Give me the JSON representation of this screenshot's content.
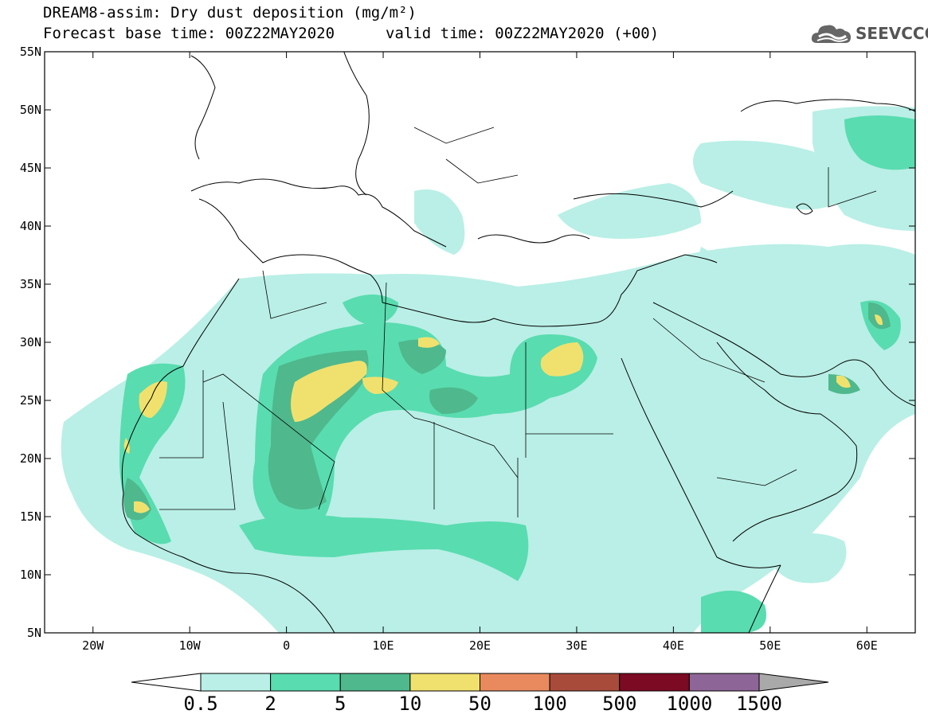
{
  "title": {
    "line1": "DREAM8-assim: Dry dust deposition (mg/m²)",
    "base_time": "Forecast base time: 00Z22MAY2020",
    "valid_time": "valid time: 00Z22MAY2020 (+00)"
  },
  "logo": {
    "text": "SEEVCCC",
    "icon": "cloud-icon"
  },
  "map": {
    "lat_labels": [
      "55N",
      "50N",
      "45N",
      "40N",
      "35N",
      "30N",
      "25N",
      "20N",
      "15N",
      "10N",
      "5N"
    ],
    "lat_values": [
      55,
      50,
      45,
      40,
      35,
      30,
      25,
      20,
      15,
      10,
      5
    ],
    "lon_labels": [
      "20W",
      "10W",
      "0",
      "10E",
      "20E",
      "30E",
      "40E",
      "50E",
      "60E"
    ],
    "lon_values": [
      -20,
      -10,
      0,
      10,
      20,
      30,
      40,
      50,
      60
    ],
    "extent": {
      "lon_min": -25,
      "lon_max": 65,
      "lat_min": 5,
      "lat_max": 55
    }
  },
  "colorbar": {
    "labels": [
      "0.5",
      "2",
      "5",
      "10",
      "50",
      "100",
      "500",
      "1000",
      "1500"
    ],
    "colors": [
      "#ffffff",
      "#b9efe6",
      "#59dcb0",
      "#4fb88d",
      "#f0e16e",
      "#e98a5e",
      "#a94b3b",
      "#7c0a23",
      "#8d6596",
      "#a9a9a9"
    ]
  }
}
